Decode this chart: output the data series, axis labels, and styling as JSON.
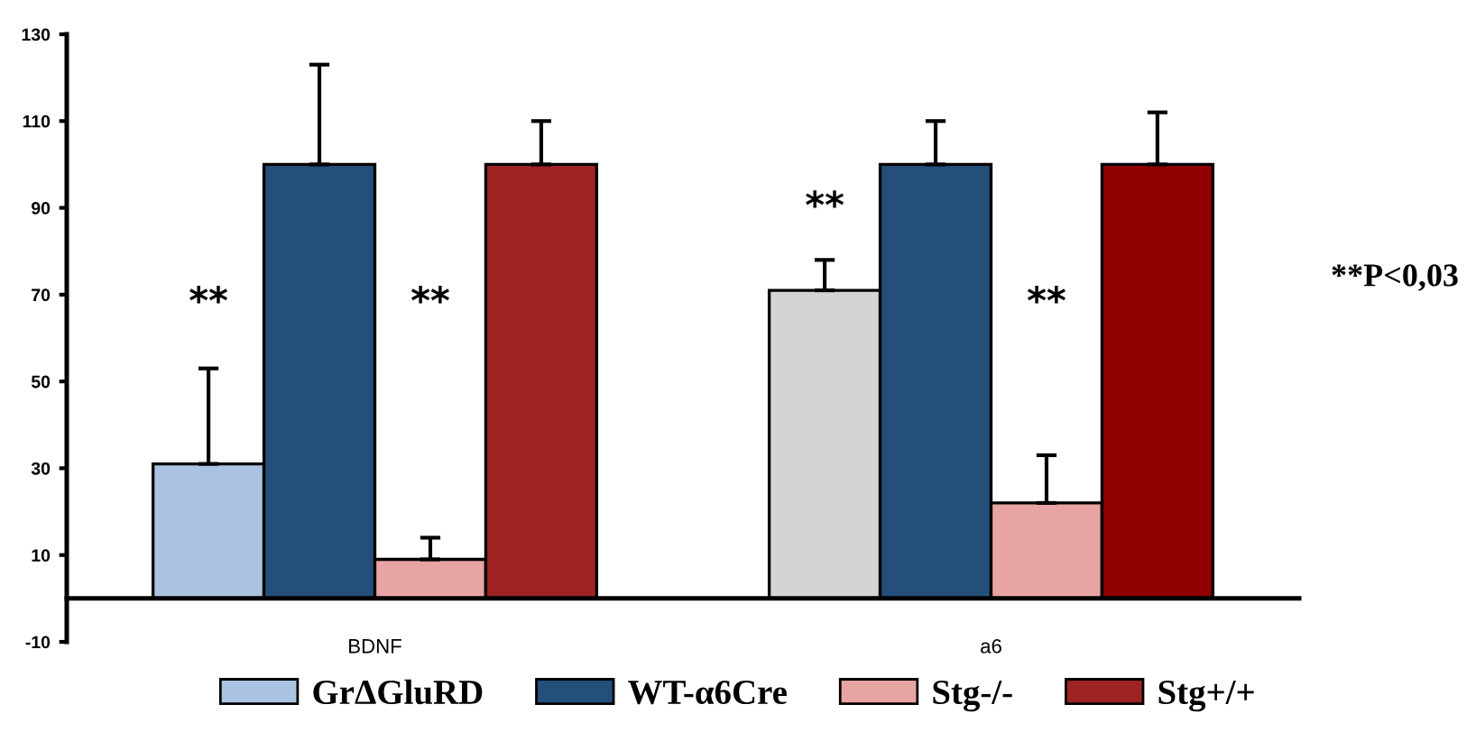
{
  "chart_data": {
    "type": "bar",
    "categories": [
      "BDNF",
      "a6"
    ],
    "series": [
      {
        "name": "GrΔGluRD",
        "color": "#a9c3e0",
        "colors": [
          "#a9c3e0",
          "#d4d4d4"
        ],
        "values": [
          31,
          71
        ],
        "errors": [
          [
            31,
            53
          ],
          [
            71,
            78
          ]
        ]
      },
      {
        "name": "WT-α6Cre",
        "color": "#244f7a",
        "values": [
          100,
          100
        ],
        "errors": [
          [
            100,
            123
          ],
          [
            100,
            110
          ]
        ]
      },
      {
        "name": "Stg-/-",
        "color": "#e8a3a3",
        "values": [
          9,
          22
        ],
        "errors": [
          [
            9,
            14
          ],
          [
            22,
            33
          ]
        ]
      },
      {
        "name": "Stg+/+",
        "color": "#9e2323",
        "colors": [
          "#9e2323",
          "#900000"
        ],
        "values": [
          100,
          100
        ],
        "errors": [
          [
            100,
            110
          ],
          [
            100,
            112
          ]
        ]
      }
    ],
    "ylim": [
      -10,
      130
    ],
    "yticks": [
      -10,
      10,
      30,
      50,
      70,
      90,
      110,
      130
    ],
    "grid": false,
    "legend": "bottom",
    "annotations": [
      "**",
      "**",
      "**",
      "**",
      "**P<0,03"
    ]
  }
}
